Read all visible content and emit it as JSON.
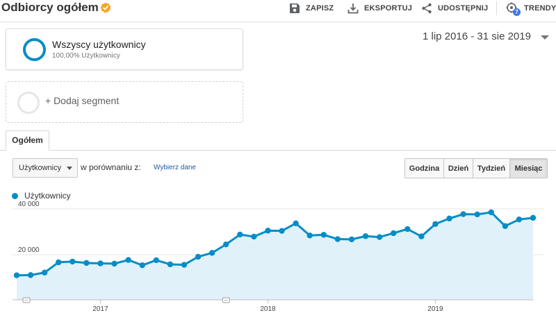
{
  "header": {
    "title": "Odbiorcy ogółem",
    "save_label": "ZAPISZ",
    "export_label": "EKSPORTUJ",
    "share_label": "UDOSTĘPNIJ",
    "trends_label": "TRENDY",
    "trends_badge": "7"
  },
  "segments": {
    "active": {
      "name": "Wszyscy użytkownicy",
      "subtitle": "100,00% Użytkownicy"
    },
    "add_label": "+ Dodaj segment"
  },
  "date_range": "1 lip 2016 - 31 sie 2019",
  "tabs": [
    {
      "label": "Ogółem",
      "active": true
    }
  ],
  "controls": {
    "metric": "Użytkownicy",
    "compare_label": "w porównaniu z:",
    "compare_link": "Wybierz dane",
    "granularity": [
      {
        "label": "Godzina",
        "active": false
      },
      {
        "label": "Dzień",
        "active": false
      },
      {
        "label": "Tydzień",
        "active": false
      },
      {
        "label": "Miesiąc",
        "active": true
      }
    ]
  },
  "legend": {
    "label": "Użytkownicy",
    "color": "#058dc7"
  },
  "colors": {
    "series": "#058dc7",
    "area_fill": "#e1f1fa",
    "badge": "#3b78e7",
    "verified": "#f5a623",
    "link": "#1a5aa6"
  },
  "chart_data": {
    "type": "area",
    "x_start": "2016-07",
    "x_end": "2019-08",
    "x": [
      "2016-07",
      "2016-08",
      "2016-09",
      "2016-10",
      "2016-11",
      "2016-12",
      "2017-01",
      "2017-02",
      "2017-03",
      "2017-04",
      "2017-05",
      "2017-06",
      "2017-07",
      "2017-08",
      "2017-09",
      "2017-10",
      "2017-11",
      "2017-12",
      "2018-01",
      "2018-02",
      "2018-03",
      "2018-04",
      "2018-05",
      "2018-06",
      "2018-07",
      "2018-08",
      "2018-09",
      "2018-10",
      "2018-11",
      "2018-12",
      "2019-01",
      "2019-02",
      "2019-03",
      "2019-04",
      "2019-05",
      "2019-06",
      "2019-07",
      "2019-08"
    ],
    "series": [
      {
        "name": "Użytkownicy",
        "values": [
          11000,
          11100,
          12200,
          16700,
          17000,
          16400,
          16200,
          16100,
          17700,
          15400,
          17600,
          15800,
          15600,
          19100,
          20800,
          24500,
          28800,
          27900,
          30500,
          30400,
          33700,
          28400,
          28700,
          26800,
          26700,
          28100,
          27700,
          29400,
          31200,
          28000,
          33400,
          35800,
          37700,
          37600,
          38500,
          32500,
          35400,
          36100
        ]
      }
    ],
    "y_ticks": [
      {
        "value": 20000,
        "label": "20 000"
      },
      {
        "value": 40000,
        "label": "40 000"
      }
    ],
    "x_ticks": [
      {
        "value": "2017-01",
        "label": "2017"
      },
      {
        "value": "2018-01",
        "label": "2018"
      },
      {
        "value": "2019-01",
        "label": "2019"
      }
    ],
    "annotations_at": [
      "2016-07",
      "2017-10"
    ],
    "ylim": [
      0,
      45000
    ],
    "grid": true,
    "legend_position": "top-left"
  }
}
